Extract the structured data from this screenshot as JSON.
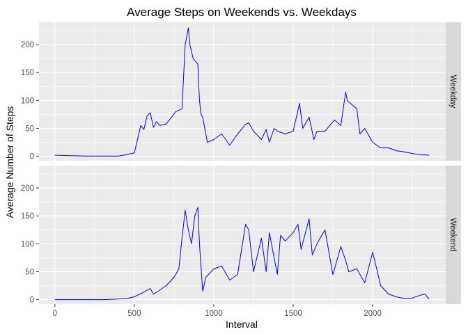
{
  "chart_data": {
    "type": "line",
    "title": "Average Steps on Weekends vs. Weekdays",
    "xlabel": "Interval",
    "ylabel": "Average Number of Steps",
    "xlim": [
      -100,
      2460
    ],
    "ylim": [
      -8,
      240
    ],
    "x_ticks": [
      0,
      500,
      1000,
      1500,
      2000
    ],
    "y_ticks": [
      0,
      50,
      100,
      150,
      200
    ],
    "grid": true,
    "line_color": "#0000ff",
    "panel_bg": "#ebebeb",
    "strip_bg": "#d9d9d9",
    "series": [
      {
        "name": "Weekday",
        "x": [
          0,
          100,
          200,
          300,
          400,
          450,
          500,
          520,
          540,
          560,
          580,
          600,
          620,
          640,
          660,
          700,
          720,
          740,
          760,
          800,
          820,
          830,
          840,
          850,
          870,
          900,
          910,
          920,
          930,
          960,
          1000,
          1050,
          1100,
          1150,
          1200,
          1220,
          1250,
          1300,
          1330,
          1350,
          1380,
          1400,
          1450,
          1500,
          1540,
          1560,
          1600,
          1630,
          1650,
          1700,
          1760,
          1800,
          1830,
          1840,
          1860,
          1900,
          1920,
          1950,
          2000,
          2050,
          2100,
          2150,
          2200,
          2250,
          2300,
          2355
        ],
        "values": [
          2,
          1,
          0.5,
          0.3,
          0.5,
          3,
          6,
          30,
          55,
          48,
          72,
          78,
          52,
          62,
          55,
          58,
          65,
          72,
          80,
          85,
          200,
          215,
          230,
          200,
          175,
          165,
          100,
          75,
          70,
          25,
          30,
          40,
          20,
          40,
          57,
          60,
          45,
          30,
          48,
          25,
          50,
          45,
          40,
          45,
          95,
          50,
          70,
          30,
          45,
          45,
          65,
          55,
          115,
          100,
          95,
          85,
          40,
          50,
          25,
          15,
          15,
          10,
          8,
          5,
          3,
          2
        ]
      },
      {
        "name": "Weekend",
        "x": [
          0,
          100,
          200,
          300,
          400,
          450,
          500,
          520,
          550,
          600,
          620,
          650,
          700,
          750,
          780,
          800,
          820,
          840,
          860,
          880,
          900,
          910,
          930,
          950,
          1000,
          1050,
          1100,
          1150,
          1200,
          1220,
          1250,
          1300,
          1330,
          1350,
          1400,
          1420,
          1450,
          1500,
          1530,
          1550,
          1600,
          1620,
          1650,
          1700,
          1750,
          1800,
          1830,
          1850,
          1900,
          1950,
          2000,
          2030,
          2050,
          2100,
          2150,
          2200,
          2250,
          2300,
          2330,
          2355
        ],
        "values": [
          0,
          0,
          0,
          0,
          1,
          2,
          5,
          8,
          12,
          20,
          10,
          15,
          25,
          40,
          55,
          110,
          160,
          125,
          100,
          150,
          165,
          100,
          15,
          40,
          55,
          60,
          35,
          45,
          135,
          125,
          50,
          110,
          50,
          120,
          45,
          115,
          105,
          120,
          135,
          90,
          145,
          80,
          100,
          125,
          45,
          95,
          70,
          50,
          55,
          30,
          85,
          50,
          25,
          10,
          5,
          2,
          3,
          8,
          10,
          1
        ]
      }
    ]
  }
}
